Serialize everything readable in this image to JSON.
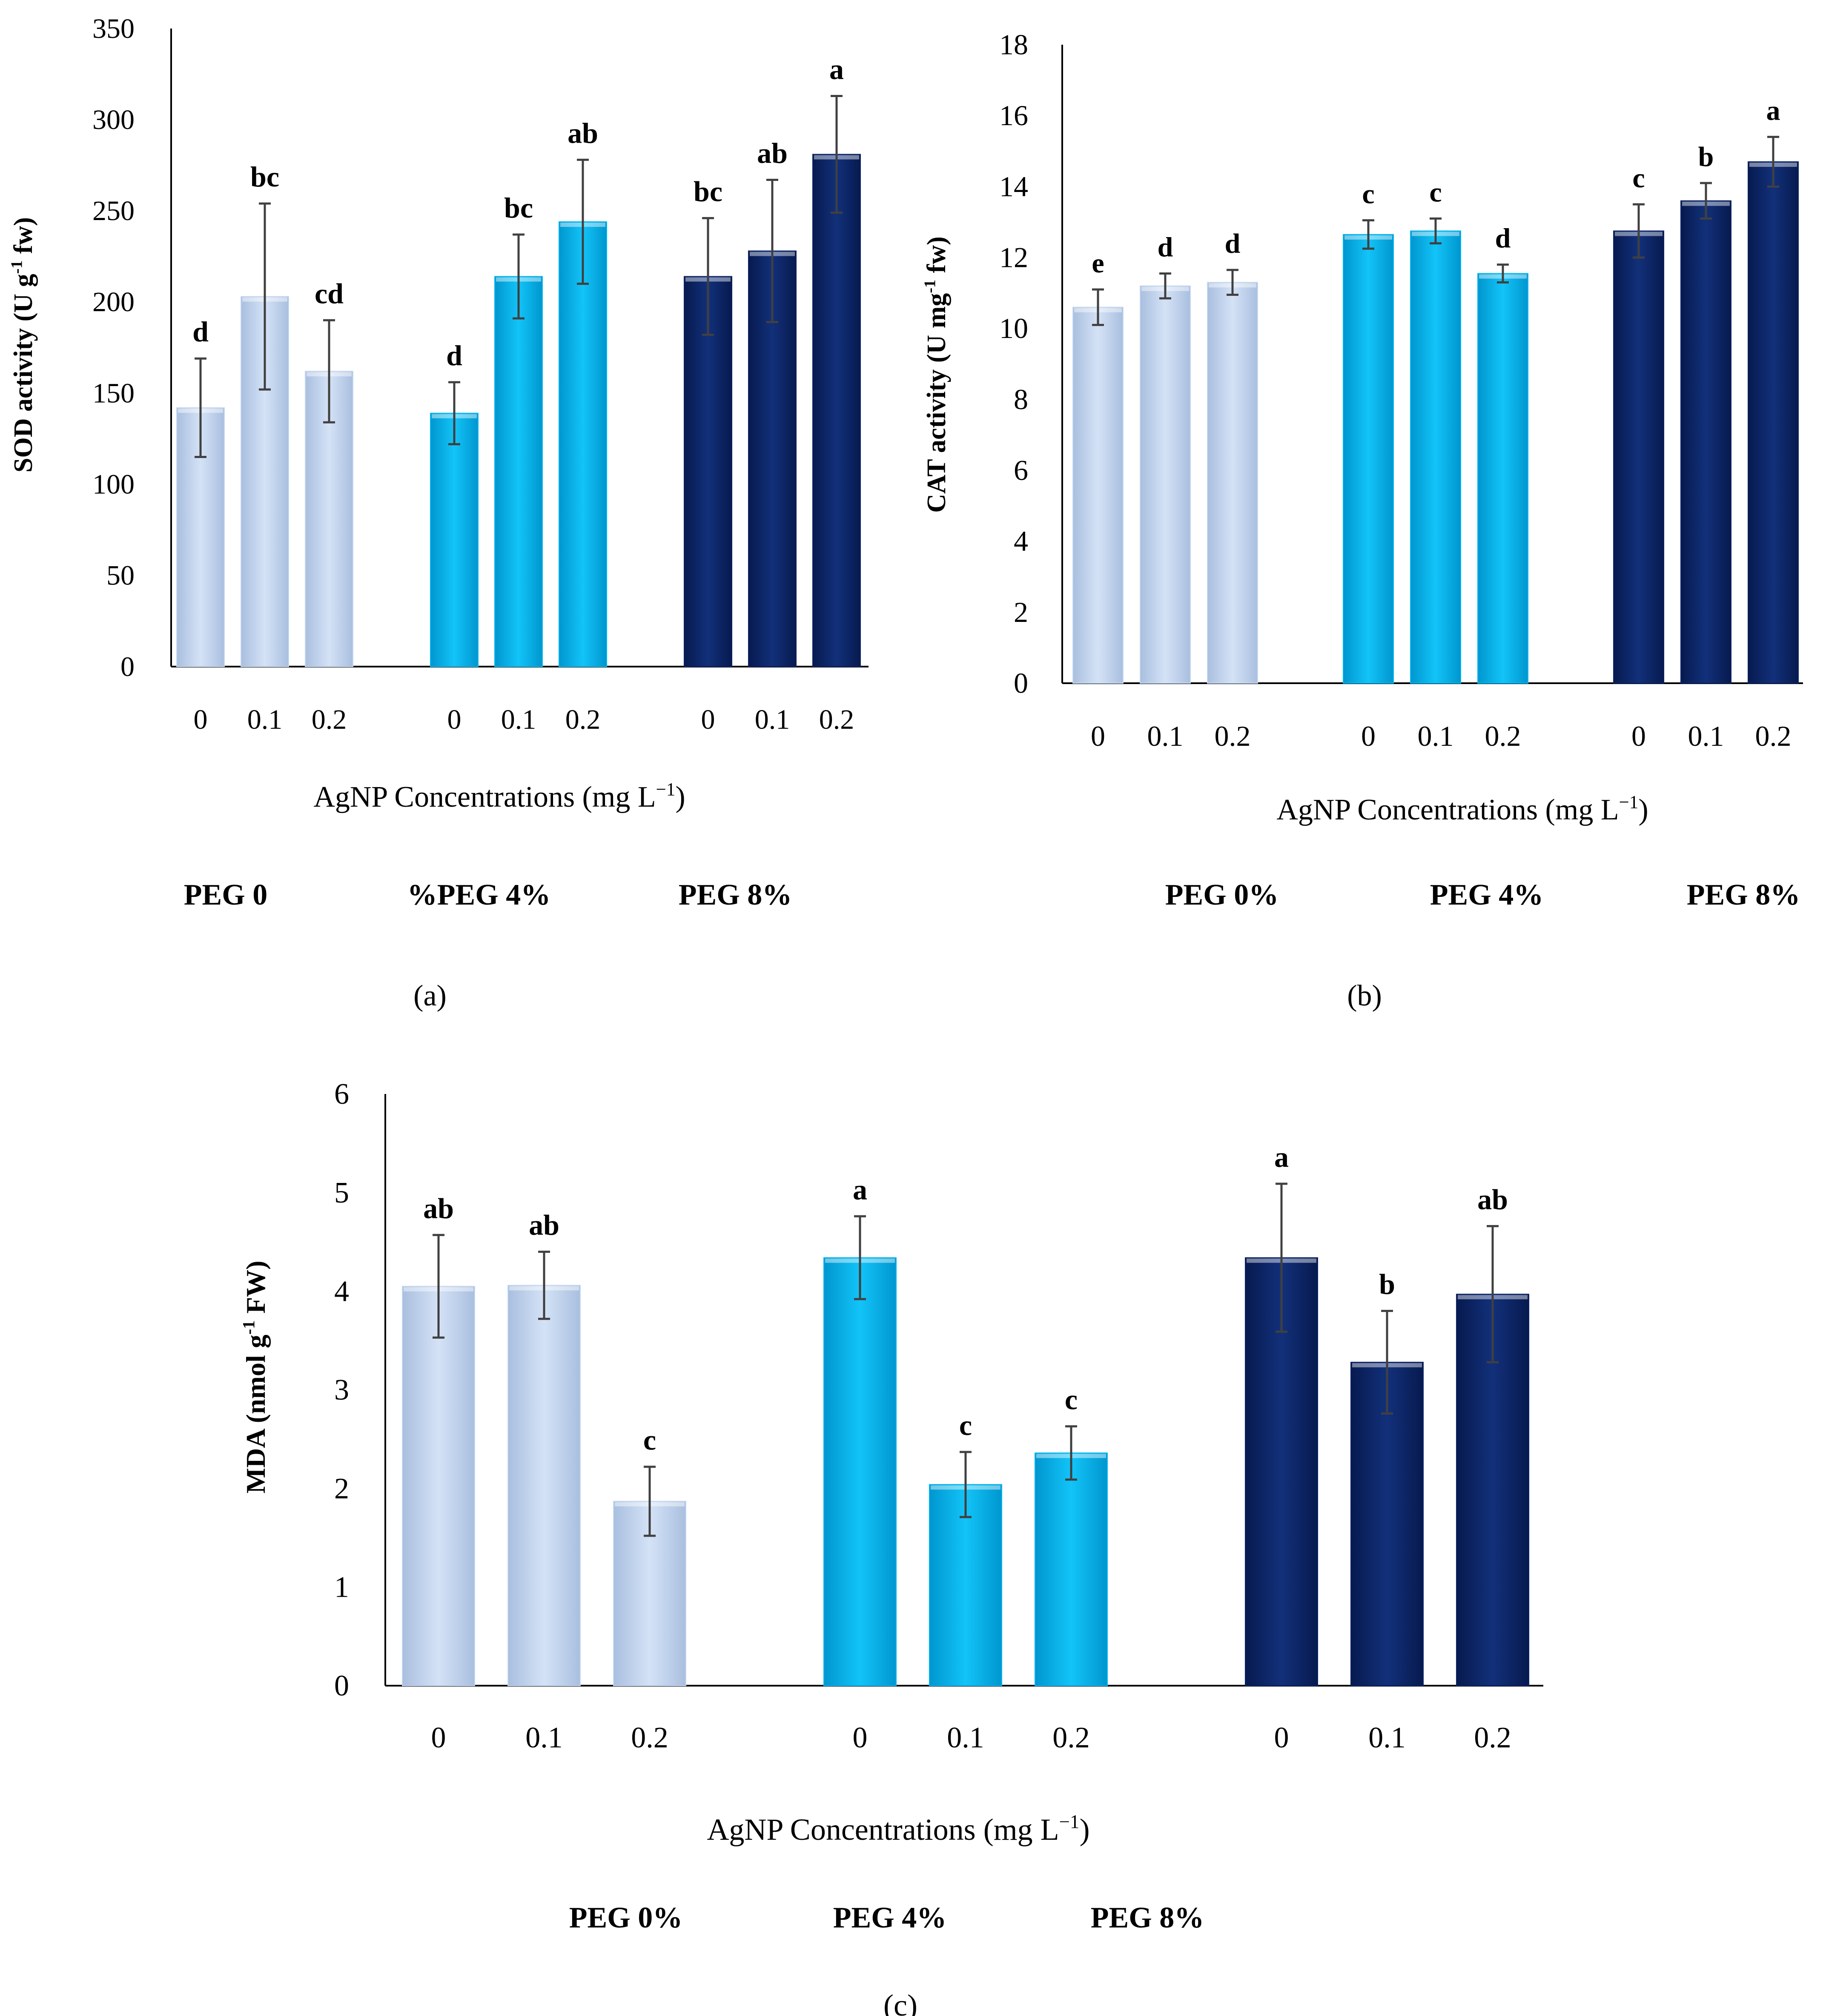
{
  "colors": {
    "peg0": "#c6d8f2",
    "peg4": "#00b8f2",
    "peg8": "#0a2466",
    "axis": "#000000",
    "error_bar": "#404040"
  },
  "chart_data": [
    {
      "type": "bar",
      "panel_label": "(a)",
      "ylabel_prefix": "SOD activity (U g",
      "ylabel_sup": "-1",
      "ylabel_suffix": " fw)",
      "ylim": [
        0,
        350
      ],
      "yticks": [
        0,
        50,
        100,
        150,
        200,
        250,
        300,
        350
      ],
      "xlabel_prefix": "AgNP Concentrations (mg L",
      "xlabel_sup": "−1",
      "xlabel_suffix": ")",
      "group_labels": [
        "PEG 0",
        "%PEG 4%",
        "PEG 8%"
      ],
      "groups": [
        {
          "name": "PEG 0",
          "color_key": "peg0",
          "bars": [
            {
              "x": "0",
              "value": 142,
              "error": 27,
              "letter": "d"
            },
            {
              "x": "0.1",
              "value": 203,
              "error": 51,
              "letter": "bc"
            },
            {
              "x": "0.2",
              "value": 162,
              "error": 28,
              "letter": "cd"
            }
          ]
        },
        {
          "name": "PEG 4%",
          "color_key": "peg4",
          "bars": [
            {
              "x": "0",
              "value": 139,
              "error": 17,
              "letter": "d"
            },
            {
              "x": "0.1",
              "value": 214,
              "error": 23,
              "letter": "bc"
            },
            {
              "x": "0.2",
              "value": 244,
              "error": 34,
              "letter": "ab"
            }
          ]
        },
        {
          "name": "PEG 8%",
          "color_key": "peg8",
          "bars": [
            {
              "x": "0",
              "value": 214,
              "error": 32,
              "letter": "bc"
            },
            {
              "x": "0.1",
              "value": 228,
              "error": 39,
              "letter": "ab"
            },
            {
              "x": "0.2",
              "value": 281,
              "error": 32,
              "letter": "a"
            }
          ]
        }
      ]
    },
    {
      "type": "bar",
      "panel_label": "(b)",
      "ylabel_prefix": "CAT activity (U mg",
      "ylabel_sup": "-1",
      "ylabel_suffix": " fw)",
      "ylim": [
        0,
        18
      ],
      "yticks": [
        0,
        2,
        4,
        6,
        8,
        10,
        12,
        14,
        16,
        18
      ],
      "xlabel_prefix": "AgNP Concentrations (mg L",
      "xlabel_sup": "−1",
      "xlabel_suffix": ")",
      "group_labels": [
        "PEG 0%",
        "PEG 4%",
        "PEG 8%"
      ],
      "groups": [
        {
          "name": "PEG 0%",
          "color_key": "peg0",
          "bars": [
            {
              "x": "0",
              "value": 10.6,
              "error": 0.5,
              "letter": "e"
            },
            {
              "x": "0.1",
              "value": 11.2,
              "error": 0.35,
              "letter": "d"
            },
            {
              "x": "0.2",
              "value": 11.3,
              "error": 0.35,
              "letter": "d"
            }
          ]
        },
        {
          "name": "PEG 4%",
          "color_key": "peg4",
          "bars": [
            {
              "x": "0",
              "value": 12.65,
              "error": 0.4,
              "letter": "c"
            },
            {
              "x": "0.1",
              "value": 12.75,
              "error": 0.35,
              "letter": "c"
            },
            {
              "x": "0.2",
              "value": 11.55,
              "error": 0.25,
              "letter": "d"
            }
          ]
        },
        {
          "name": "PEG 8%",
          "color_key": "peg8",
          "bars": [
            {
              "x": "0",
              "value": 12.75,
              "error": 0.75,
              "letter": "c"
            },
            {
              "x": "0.1",
              "value": 13.6,
              "error": 0.5,
              "letter": "b"
            },
            {
              "x": "0.2",
              "value": 14.7,
              "error": 0.7,
              "letter": "a"
            }
          ]
        }
      ]
    },
    {
      "type": "bar",
      "panel_label": "(c)",
      "ylabel_prefix": "MDA (nmol g",
      "ylabel_sup": "-1",
      "ylabel_suffix": " FW)",
      "ylim": [
        0,
        6
      ],
      "yticks": [
        0,
        1,
        2,
        3,
        4,
        5,
        6
      ],
      "xlabel_prefix": "AgNP Concentrations (mg L",
      "xlabel_sup": "−1",
      "xlabel_suffix": ")",
      "group_labels": [
        "PEG 0%",
        "PEG 4%",
        "PEG 8%"
      ],
      "groups": [
        {
          "name": "PEG 0%",
          "color_key": "peg0",
          "bars": [
            {
              "x": "0",
              "value": 4.05,
              "error": 0.52,
              "letter": "ab"
            },
            {
              "x": "0.1",
              "value": 4.06,
              "error": 0.34,
              "letter": "ab"
            },
            {
              "x": "0.2",
              "value": 1.87,
              "error": 0.35,
              "letter": "c"
            }
          ]
        },
        {
          "name": "PEG 4%",
          "color_key": "peg4",
          "bars": [
            {
              "x": "0",
              "value": 4.34,
              "error": 0.42,
              "letter": "a"
            },
            {
              "x": "0.1",
              "value": 2.04,
              "error": 0.33,
              "letter": "c"
            },
            {
              "x": "0.2",
              "value": 2.36,
              "error": 0.27,
              "letter": "c"
            }
          ]
        },
        {
          "name": "PEG 8%",
          "color_key": "peg8",
          "bars": [
            {
              "x": "0",
              "value": 4.34,
              "error": 0.75,
              "letter": "a"
            },
            {
              "x": "0.1",
              "value": 3.28,
              "error": 0.52,
              "letter": "b"
            },
            {
              "x": "0.2",
              "value": 3.97,
              "error": 0.69,
              "letter": "ab"
            }
          ]
        }
      ]
    }
  ]
}
